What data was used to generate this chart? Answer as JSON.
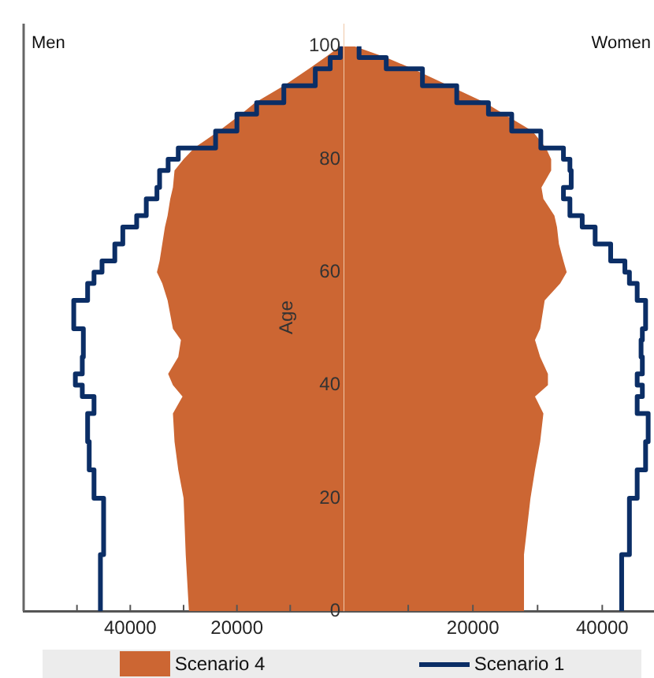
{
  "chart_data": [
    {
      "type": "area",
      "orientation": "horizontal",
      "title": "Men",
      "ylabel": "Age",
      "legend": "bottom",
      "tick_labels": "xy",
      "x": [
        0,
        10,
        20,
        25,
        30,
        35,
        38,
        40,
        42,
        45,
        48,
        50,
        55,
        58,
        60,
        62,
        65,
        68,
        70,
        73,
        75,
        78,
        80,
        82,
        85,
        88,
        90,
        93,
        96,
        98,
        100
      ],
      "xlim": [
        60000,
        0
      ],
      "xticks": [
        {
          "value": 10000,
          "label": null
        },
        {
          "value": 20000,
          "label": "20000"
        },
        {
          "value": 30000,
          "label": null
        },
        {
          "value": 40000,
          "label": "40000"
        },
        {
          "value": 50000,
          "label": null
        }
      ],
      "ylim": [
        0,
        104
      ],
      "yticks": [
        0,
        20,
        40,
        60,
        80,
        100
      ],
      "series": [
        {
          "name": "Scenario 4",
          "type": "area",
          "color": "#cc6633",
          "values": [
            29000,
            29600,
            30000,
            31000,
            31700,
            32000,
            30200,
            32000,
            32900,
            31000,
            30500,
            32000,
            33000,
            34000,
            35000,
            34500,
            34000,
            33500,
            33000,
            32500,
            32000,
            31700,
            30000,
            28000,
            23400,
            19200,
            16600,
            11200,
            6500,
            3500,
            600
          ]
        },
        {
          "name": "Scenario 1",
          "type": "step",
          "color": "#0b2e66",
          "values": [
            45300,
            45600,
            45000,
            46800,
            47700,
            48000,
            46800,
            49000,
            50300,
            49000,
            48800,
            48800,
            50600,
            48000,
            46800,
            45300,
            42900,
            41400,
            38800,
            37000,
            35000,
            34500,
            32900,
            31000,
            24000,
            20000,
            16300,
            11200,
            5300,
            2500,
            600
          ]
        }
      ]
    },
    {
      "type": "area",
      "orientation": "horizontal",
      "title": "Women",
      "tick_labels": "x",
      "x": [
        0,
        10,
        20,
        25,
        30,
        35,
        38,
        40,
        42,
        45,
        48,
        50,
        55,
        58,
        60,
        62,
        65,
        68,
        70,
        73,
        75,
        78,
        80,
        82,
        85,
        88,
        90,
        93,
        96,
        98,
        100
      ],
      "xlim": [
        0,
        48000
      ],
      "xticks": [
        {
          "value": 10000,
          "label": null
        },
        {
          "value": 20000,
          "label": "20000"
        },
        {
          "value": 30000,
          "label": null
        },
        {
          "value": 40000,
          "label": "40000"
        }
      ],
      "ylim": [
        0,
        104
      ],
      "yticks": [
        0,
        20,
        40,
        60,
        80,
        100
      ],
      "series": [
        {
          "type": "area",
          "color": "#cc6633",
          "values": [
            27900,
            27900,
            28900,
            29600,
            30400,
            30900,
            29600,
            31600,
            31600,
            30400,
            29600,
            30400,
            31100,
            33500,
            34500,
            34000,
            33300,
            33000,
            32600,
            30900,
            30600,
            32100,
            32100,
            31300,
            29200,
            24800,
            21900,
            16300,
            10700,
            6600,
            1700
          ]
        },
        {
          "type": "step",
          "color": "#0b2e66",
          "values": [
            43000,
            43000,
            44200,
            45400,
            46700,
            47100,
            45400,
            46200,
            45400,
            46200,
            46000,
            46200,
            46700,
            45400,
            44200,
            43500,
            41300,
            38900,
            36900,
            35000,
            34000,
            35200,
            35000,
            34000,
            30500,
            26000,
            22400,
            17500,
            12200,
            6600,
            2400
          ]
        }
      ]
    }
  ]
}
